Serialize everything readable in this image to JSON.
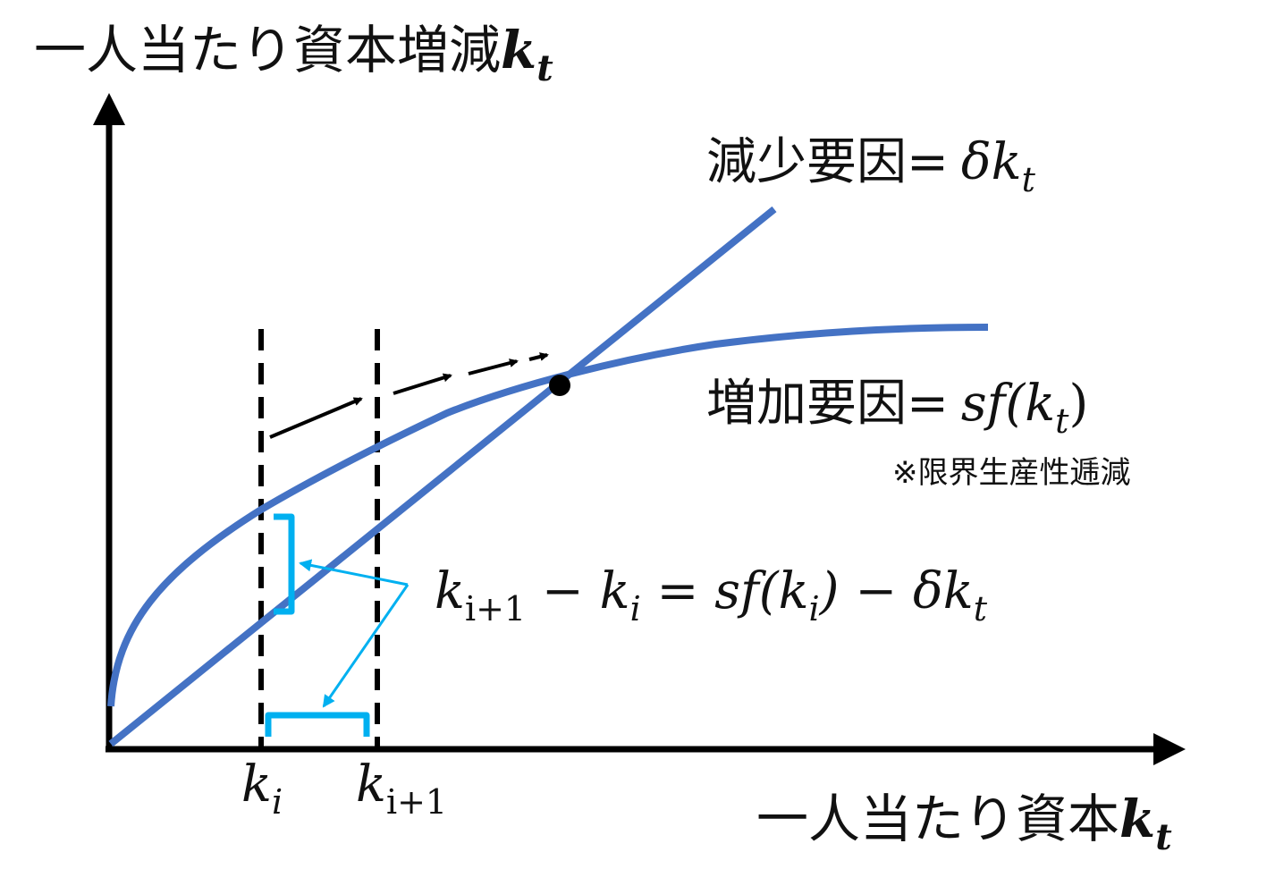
{
  "y_axis_label": {
    "text": "一人当たり資本増減",
    "var": "k",
    "sub": "t"
  },
  "x_axis_label": {
    "text": "一人当たり資本",
    "var": "k",
    "sub": "t"
  },
  "decrease_label": {
    "text": "減少要因=",
    "greek": "δk",
    "sub": "t"
  },
  "increase_label": {
    "text": "増加要因=",
    "math": "sf(k",
    "sub": "t",
    "close": ")"
  },
  "note": "※限界生産性逓減",
  "tick_ki": {
    "var": "k",
    "sub": "i"
  },
  "tick_ki1": {
    "var": "k",
    "sub": "i+1"
  },
  "equation": {
    "p1": "k",
    "p1sub": "i+1",
    "p2": " − k",
    "p2sub": "i",
    "p3": " = sf(k",
    "p3sub": "i",
    "p4": ") − δk",
    "p4sub": "t"
  },
  "colors": {
    "curve": "#4472C4",
    "bracket": "#00B0F0",
    "axis": "#000000",
    "arrow": "#000000"
  }
}
